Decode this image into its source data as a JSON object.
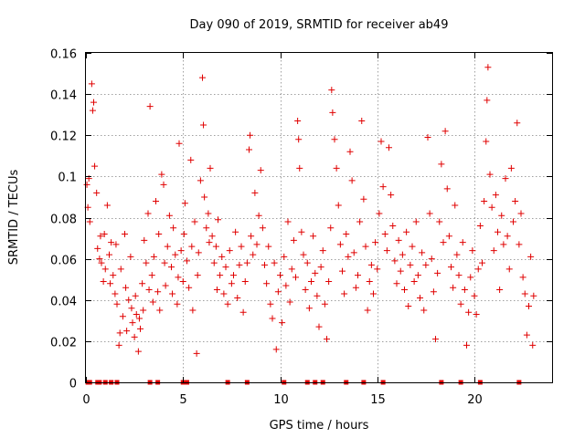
{
  "chart_data": {
    "type": "scatter",
    "title": "Day 090 of 2019, SRMTID for receiver ab49",
    "xlabel": "GPS time / hours",
    "ylabel": "SRMTID / TECUs",
    "xlim": [
      0,
      24
    ],
    "ylim": [
      0,
      0.16
    ],
    "xticks": [
      0,
      5,
      10,
      15,
      20
    ],
    "yticks": [
      0,
      0.02,
      0.04,
      0.06,
      0.08,
      0.1,
      0.12,
      0.14,
      0.16
    ],
    "xtick_labels": [
      "0",
      "5",
      "10",
      "15",
      "20"
    ],
    "ytick_labels": [
      "0",
      "0.02",
      "0.04",
      "0.06",
      "0.08",
      "0.1",
      "0.12",
      "0.14",
      "0.16"
    ],
    "grid": true,
    "color": "#e00000",
    "marker": "plus",
    "series": [
      {
        "name": "SRMTID",
        "points": [
          [
            0.05,
            0.096
          ],
          [
            0.1,
            0.085
          ],
          [
            0.15,
            0.099
          ],
          [
            0.2,
            0.078
          ],
          [
            0.3,
            0.145
          ],
          [
            0.35,
            0.132
          ],
          [
            0.4,
            0.136
          ],
          [
            0.45,
            0.105
          ],
          [
            0.55,
            0.092
          ],
          [
            0.6,
            0.065
          ],
          [
            0.7,
            0.06
          ],
          [
            0.75,
            0.071
          ],
          [
            0.8,
            0.058
          ],
          [
            0.9,
            0.049
          ],
          [
            0.95,
            0.072
          ],
          [
            1.0,
            0.055
          ],
          [
            1.1,
            0.086
          ],
          [
            1.2,
            0.062
          ],
          [
            1.25,
            0.048
          ],
          [
            1.3,
            0.068
          ],
          [
            1.4,
            0.052
          ],
          [
            1.5,
            0.043
          ],
          [
            1.55,
            0.067
          ],
          [
            1.6,
            0.038
          ],
          [
            1.7,
            0.018
          ],
          [
            1.75,
            0.024
          ],
          [
            1.8,
            0.055
          ],
          [
            1.9,
            0.032
          ],
          [
            2.0,
            0.072
          ],
          [
            2.05,
            0.046
          ],
          [
            2.1,
            0.025
          ],
          [
            2.2,
            0.04
          ],
          [
            2.3,
            0.061
          ],
          [
            2.35,
            0.036
          ],
          [
            2.4,
            0.029
          ],
          [
            2.5,
            0.022
          ],
          [
            2.55,
            0.042
          ],
          [
            2.6,
            0.033
          ],
          [
            2.7,
            0.015
          ],
          [
            2.75,
            0.031
          ],
          [
            2.8,
            0.026
          ],
          [
            2.9,
            0.048
          ],
          [
            2.95,
            0.035
          ],
          [
            3.0,
            0.069
          ],
          [
            3.1,
            0.058
          ],
          [
            3.2,
            0.082
          ],
          [
            3.25,
            0.045
          ],
          [
            3.3,
            0.134
          ],
          [
            3.4,
            0.052
          ],
          [
            3.45,
            0.039
          ],
          [
            3.5,
            0.061
          ],
          [
            3.6,
            0.088
          ],
          [
            3.7,
            0.044
          ],
          [
            3.75,
            0.072
          ],
          [
            3.8,
            0.035
          ],
          [
            3.9,
            0.101
          ],
          [
            4.0,
            0.096
          ],
          [
            4.05,
            0.058
          ],
          [
            4.1,
            0.047
          ],
          [
            4.2,
            0.066
          ],
          [
            4.3,
            0.081
          ],
          [
            4.4,
            0.056
          ],
          [
            4.45,
            0.043
          ],
          [
            4.5,
            0.075
          ],
          [
            4.6,
            0.062
          ],
          [
            4.7,
            0.038
          ],
          [
            4.75,
            0.051
          ],
          [
            4.8,
            0.116
          ],
          [
            4.9,
            0.064
          ],
          [
            5.0,
            0.049
          ],
          [
            5.05,
            0.072
          ],
          [
            5.1,
            0.087
          ],
          [
            5.2,
            0.059
          ],
          [
            5.3,
            0.046
          ],
          [
            5.4,
            0.108
          ],
          [
            5.45,
            0.066
          ],
          [
            5.5,
            0.035
          ],
          [
            5.6,
            0.078
          ],
          [
            5.7,
            0.014
          ],
          [
            5.75,
            0.052
          ],
          [
            5.8,
            0.063
          ],
          [
            5.9,
            0.098
          ],
          [
            6.0,
            0.148
          ],
          [
            6.05,
            0.125
          ],
          [
            6.1,
            0.09
          ],
          [
            6.2,
            0.075
          ],
          [
            6.3,
            0.082
          ],
          [
            6.35,
            0.068
          ],
          [
            6.4,
            0.104
          ],
          [
            6.5,
            0.071
          ],
          [
            6.6,
            0.058
          ],
          [
            6.7,
            0.066
          ],
          [
            6.75,
            0.045
          ],
          [
            6.8,
            0.079
          ],
          [
            6.9,
            0.052
          ],
          [
            7.0,
            0.061
          ],
          [
            7.1,
            0.043
          ],
          [
            7.2,
            0.056
          ],
          [
            7.3,
            0.038
          ],
          [
            7.4,
            0.064
          ],
          [
            7.5,
            0.048
          ],
          [
            7.6,
            0.052
          ],
          [
            7.7,
            0.073
          ],
          [
            7.8,
            0.041
          ],
          [
            7.9,
            0.057
          ],
          [
            8.0,
            0.066
          ],
          [
            8.1,
            0.034
          ],
          [
            8.2,
            0.049
          ],
          [
            8.3,
            0.058
          ],
          [
            8.4,
            0.113
          ],
          [
            8.45,
            0.12
          ],
          [
            8.5,
            0.071
          ],
          [
            8.6,
            0.062
          ],
          [
            8.7,
            0.092
          ],
          [
            8.8,
            0.067
          ],
          [
            8.9,
            0.081
          ],
          [
            9.0,
            0.103
          ],
          [
            9.1,
            0.075
          ],
          [
            9.2,
            0.057
          ],
          [
            9.3,
            0.048
          ],
          [
            9.4,
            0.066
          ],
          [
            9.5,
            0.038
          ],
          [
            9.6,
            0.031
          ],
          [
            9.7,
            0.058
          ],
          [
            9.8,
            0.016
          ],
          [
            9.9,
            0.044
          ],
          [
            10.0,
            0.052
          ],
          [
            10.1,
            0.029
          ],
          [
            10.2,
            0.061
          ],
          [
            10.3,
            0.047
          ],
          [
            10.4,
            0.078
          ],
          [
            10.5,
            0.039
          ],
          [
            10.6,
            0.055
          ],
          [
            10.7,
            0.069
          ],
          [
            10.8,
            0.051
          ],
          [
            10.9,
            0.127
          ],
          [
            10.95,
            0.118
          ],
          [
            11.0,
            0.104
          ],
          [
            11.1,
            0.073
          ],
          [
            11.2,
            0.062
          ],
          [
            11.3,
            0.045
          ],
          [
            11.4,
            0.058
          ],
          [
            11.5,
            0.036
          ],
          [
            11.6,
            0.049
          ],
          [
            11.7,
            0.071
          ],
          [
            11.8,
            0.053
          ],
          [
            11.9,
            0.042
          ],
          [
            12.0,
            0.027
          ],
          [
            12.1,
            0.056
          ],
          [
            12.2,
            0.064
          ],
          [
            12.3,
            0.038
          ],
          [
            12.4,
            0.021
          ],
          [
            12.5,
            0.049
          ],
          [
            12.6,
            0.075
          ],
          [
            12.65,
            0.142
          ],
          [
            12.7,
            0.131
          ],
          [
            12.8,
            0.118
          ],
          [
            12.9,
            0.104
          ],
          [
            13.0,
            0.086
          ],
          [
            13.1,
            0.067
          ],
          [
            13.2,
            0.054
          ],
          [
            13.3,
            0.043
          ],
          [
            13.4,
            0.072
          ],
          [
            13.5,
            0.061
          ],
          [
            13.6,
            0.112
          ],
          [
            13.7,
            0.098
          ],
          [
            13.8,
            0.063
          ],
          [
            13.9,
            0.046
          ],
          [
            14.0,
            0.052
          ],
          [
            14.1,
            0.078
          ],
          [
            14.2,
            0.127
          ],
          [
            14.3,
            0.089
          ],
          [
            14.4,
            0.066
          ],
          [
            14.5,
            0.035
          ],
          [
            14.6,
            0.049
          ],
          [
            14.7,
            0.057
          ],
          [
            14.8,
            0.043
          ],
          [
            14.9,
            0.068
          ],
          [
            15.0,
            0.055
          ],
          [
            15.1,
            0.082
          ],
          [
            15.2,
            0.117
          ],
          [
            15.3,
            0.095
          ],
          [
            15.4,
            0.072
          ],
          [
            15.5,
            0.064
          ],
          [
            15.6,
            0.114
          ],
          [
            15.7,
            0.091
          ],
          [
            15.8,
            0.076
          ],
          [
            15.9,
            0.059
          ],
          [
            16.0,
            0.048
          ],
          [
            16.1,
            0.069
          ],
          [
            16.2,
            0.054
          ],
          [
            16.3,
            0.062
          ],
          [
            16.4,
            0.045
          ],
          [
            16.5,
            0.073
          ],
          [
            16.6,
            0.037
          ],
          [
            16.7,
            0.057
          ],
          [
            16.8,
            0.066
          ],
          [
            16.9,
            0.049
          ],
          [
            17.0,
            0.078
          ],
          [
            17.1,
            0.052
          ],
          [
            17.2,
            0.041
          ],
          [
            17.3,
            0.063
          ],
          [
            17.4,
            0.035
          ],
          [
            17.5,
            0.057
          ],
          [
            17.6,
            0.119
          ],
          [
            17.7,
            0.082
          ],
          [
            17.8,
            0.06
          ],
          [
            17.9,
            0.044
          ],
          [
            18.0,
            0.021
          ],
          [
            18.1,
            0.053
          ],
          [
            18.2,
            0.078
          ],
          [
            18.3,
            0.106
          ],
          [
            18.4,
            0.068
          ],
          [
            18.5,
            0.122
          ],
          [
            18.6,
            0.094
          ],
          [
            18.7,
            0.071
          ],
          [
            18.8,
            0.056
          ],
          [
            18.9,
            0.046
          ],
          [
            19.0,
            0.086
          ],
          [
            19.1,
            0.062
          ],
          [
            19.2,
            0.052
          ],
          [
            19.3,
            0.038
          ],
          [
            19.4,
            0.068
          ],
          [
            19.5,
            0.045
          ],
          [
            19.6,
            0.018
          ],
          [
            19.7,
            0.034
          ],
          [
            19.8,
            0.051
          ],
          [
            19.9,
            0.064
          ],
          [
            20.0,
            0.042
          ],
          [
            20.1,
            0.033
          ],
          [
            20.2,
            0.055
          ],
          [
            20.3,
            0.076
          ],
          [
            20.4,
            0.058
          ],
          [
            20.5,
            0.088
          ],
          [
            20.6,
            0.117
          ],
          [
            20.65,
            0.137
          ],
          [
            20.7,
            0.153
          ],
          [
            20.8,
            0.101
          ],
          [
            20.9,
            0.085
          ],
          [
            21.0,
            0.064
          ],
          [
            21.1,
            0.091
          ],
          [
            21.2,
            0.073
          ],
          [
            21.3,
            0.045
          ],
          [
            21.4,
            0.081
          ],
          [
            21.5,
            0.067
          ],
          [
            21.6,
            0.099
          ],
          [
            21.7,
            0.071
          ],
          [
            21.8,
            0.055
          ],
          [
            21.9,
            0.104
          ],
          [
            22.0,
            0.078
          ],
          [
            22.1,
            0.088
          ],
          [
            22.2,
            0.126
          ],
          [
            22.3,
            0.067
          ],
          [
            22.4,
            0.082
          ],
          [
            22.5,
            0.051
          ],
          [
            22.6,
            0.043
          ],
          [
            22.7,
            0.023
          ],
          [
            22.8,
            0.037
          ],
          [
            22.9,
            0.061
          ],
          [
            23.0,
            0.018
          ],
          [
            23.05,
            0.042
          ]
        ]
      }
    ],
    "zero_markers_x": [
      0.1,
      0.2,
      0.6,
      0.7,
      1.0,
      1.3,
      1.6,
      3.3,
      3.7,
      5.0,
      5.2,
      7.3,
      8.3,
      10.2,
      11.4,
      11.8,
      12.2,
      13.4,
      14.3,
      15.3,
      18.3,
      19.3,
      20.3,
      22.3
    ]
  }
}
